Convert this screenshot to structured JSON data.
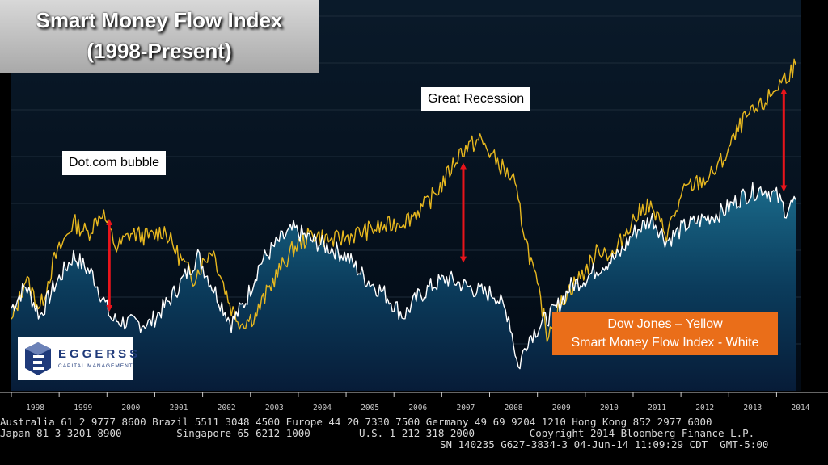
{
  "title": {
    "line1": "Smart Money Flow Index",
    "line2": "(1998-Present)"
  },
  "annotations": {
    "dotcom": "Dot.com bubble",
    "recession": "Great Recession"
  },
  "legend": {
    "line1": "Dow Jones – Yellow",
    "line2": "Smart Money Flow Index - White"
  },
  "logo": {
    "name": "EGGERSS",
    "sub": "CAPITAL MANAGEMENT"
  },
  "footer": {
    "line1": "Australia 61 2 9777 8600 Brazil 5511 3048 4500 Europe 44 20 7330 7500 Germany 49 69 9204 1210 Hong Kong 852 2977 6000",
    "line2": "Japan 81 3 3201 8900         Singapore 65 6212 1000        U.S. 1 212 318 2000         Copyright 2014 Bloomberg Finance L.P.",
    "line3": "SN 140235 G627-3834-3 04-Jun-14 11:09:29 CDT  GMT-5:00"
  },
  "colors": {
    "dow": "#e8b81f",
    "smart_money": "#ffffff",
    "arrow": "#e8141b",
    "accent": "#ea6e19"
  },
  "chart_data": {
    "type": "line",
    "title": "Smart Money Flow Index",
    "subtitle": "(1998-Present)",
    "xlabel": "",
    "ylabel": "",
    "x_ticks": [
      "1998",
      "1999",
      "2000",
      "2001",
      "2002",
      "2003",
      "2004",
      "2005",
      "2006",
      "2007",
      "2008",
      "2009",
      "2010",
      "2011",
      "2012",
      "2013",
      "2014"
    ],
    "xlim": [
      1998.0,
      2014.5
    ],
    "ylim": [
      0,
      100
    ],
    "grid": true,
    "legend_position": "bottom-right",
    "series": [
      {
        "name": "Dow Jones",
        "color": "#e8b81f",
        "points": [
          [
            1998.0,
            18
          ],
          [
            1998.3,
            30
          ],
          [
            1998.6,
            22
          ],
          [
            1998.9,
            35
          ],
          [
            1999.3,
            45
          ],
          [
            1999.6,
            42
          ],
          [
            1999.9,
            48
          ],
          [
            2000.2,
            38
          ],
          [
            2000.5,
            42
          ],
          [
            2000.9,
            41
          ],
          [
            2001.2,
            43
          ],
          [
            2001.5,
            36
          ],
          [
            2001.8,
            30
          ],
          [
            2002.2,
            38
          ],
          [
            2002.6,
            22
          ],
          [
            2002.8,
            18
          ],
          [
            2003.1,
            20
          ],
          [
            2003.5,
            30
          ],
          [
            2003.9,
            38
          ],
          [
            2004.3,
            42
          ],
          [
            2004.7,
            40
          ],
          [
            2005.0,
            41
          ],
          [
            2005.5,
            43
          ],
          [
            2005.9,
            44
          ],
          [
            2006.3,
            46
          ],
          [
            2006.7,
            50
          ],
          [
            2007.0,
            55
          ],
          [
            2007.4,
            64
          ],
          [
            2007.8,
            67
          ],
          [
            2008.1,
            62
          ],
          [
            2008.5,
            56
          ],
          [
            2008.8,
            38
          ],
          [
            2009.1,
            22
          ],
          [
            2009.2,
            15
          ],
          [
            2009.6,
            26
          ],
          [
            2010.0,
            32
          ],
          [
            2010.3,
            38
          ],
          [
            2010.6,
            36
          ],
          [
            2010.9,
            44
          ],
          [
            2011.3,
            50
          ],
          [
            2011.7,
            42
          ],
          [
            2012.1,
            54
          ],
          [
            2012.6,
            57
          ],
          [
            2012.9,
            62
          ],
          [
            2013.3,
            72
          ],
          [
            2013.7,
            76
          ],
          [
            2014.0,
            81
          ],
          [
            2014.2,
            84
          ],
          [
            2014.4,
            87
          ]
        ]
      },
      {
        "name": "Smart Money Flow Index",
        "color": "#ffffff",
        "points": [
          [
            1998.0,
            22
          ],
          [
            1998.3,
            28
          ],
          [
            1998.6,
            20
          ],
          [
            1998.9,
            28
          ],
          [
            1999.3,
            36
          ],
          [
            1999.7,
            31
          ],
          [
            1999.9,
            25
          ],
          [
            2000.1,
            19
          ],
          [
            2000.5,
            18
          ],
          [
            2000.9,
            18
          ],
          [
            2001.3,
            24
          ],
          [
            2001.6,
            30
          ],
          [
            2001.9,
            36
          ],
          [
            2002.2,
            28
          ],
          [
            2002.6,
            18
          ],
          [
            2002.9,
            24
          ],
          [
            2003.2,
            34
          ],
          [
            2003.6,
            40
          ],
          [
            2003.9,
            43
          ],
          [
            2004.3,
            40
          ],
          [
            2004.7,
            38
          ],
          [
            2005.0,
            36
          ],
          [
            2005.4,
            30
          ],
          [
            2005.8,
            26
          ],
          [
            2006.2,
            20
          ],
          [
            2006.5,
            25
          ],
          [
            2006.8,
            28
          ],
          [
            2007.1,
            30
          ],
          [
            2007.5,
            28
          ],
          [
            2007.9,
            26
          ],
          [
            2008.1,
            26
          ],
          [
            2008.4,
            20
          ],
          [
            2008.6,
            6
          ],
          [
            2008.8,
            14
          ],
          [
            2009.1,
            18
          ],
          [
            2009.4,
            22
          ],
          [
            2009.7,
            28
          ],
          [
            2010.0,
            30
          ],
          [
            2010.4,
            34
          ],
          [
            2010.7,
            36
          ],
          [
            2011.0,
            42
          ],
          [
            2011.4,
            46
          ],
          [
            2011.7,
            40
          ],
          [
            2012.1,
            44
          ],
          [
            2012.5,
            46
          ],
          [
            2012.9,
            48
          ],
          [
            2013.3,
            52
          ],
          [
            2013.7,
            54
          ],
          [
            2014.0,
            52
          ],
          [
            2014.2,
            48
          ],
          [
            2014.4,
            51
          ]
        ]
      }
    ],
    "annotations": [
      {
        "text": "Dot.com bubble",
        "x": 2000.1
      },
      {
        "text": "Great Recession",
        "x": 2007.4
      }
    ],
    "gap_arrows": [
      {
        "x": 2000.05,
        "from": 45,
        "to": 22
      },
      {
        "x": 2007.45,
        "from": 60,
        "to": 35
      },
      {
        "x": 2014.15,
        "from": 80,
        "to": 54
      }
    ]
  }
}
